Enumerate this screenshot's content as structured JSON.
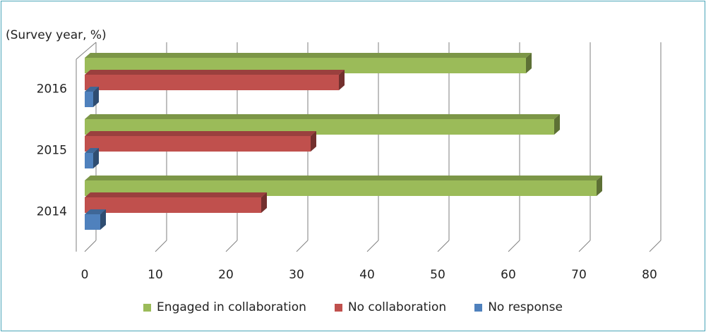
{
  "chart_data": {
    "type": "bar",
    "orientation": "horizontal",
    "unit_label": "(Survey year, %)",
    "categories": [
      "2016",
      "2015",
      "2014"
    ],
    "series": [
      {
        "name": "Engaged in collaboration",
        "color": "#9bbb59",
        "values": [
          62.5,
          66.5,
          72.5
        ]
      },
      {
        "name": "No collaboration",
        "color": "#c0504d",
        "values": [
          36,
          32,
          25
        ]
      },
      {
        "name": "No response",
        "color": "#4f81bd",
        "values": [
          1.2,
          1.2,
          2.2
        ]
      }
    ],
    "xlim": [
      0,
      80
    ],
    "xticks": [
      "0",
      "10",
      "20",
      "30",
      "40",
      "50",
      "60",
      "70",
      "80"
    ],
    "grid": true,
    "legend_position": "bottom"
  }
}
